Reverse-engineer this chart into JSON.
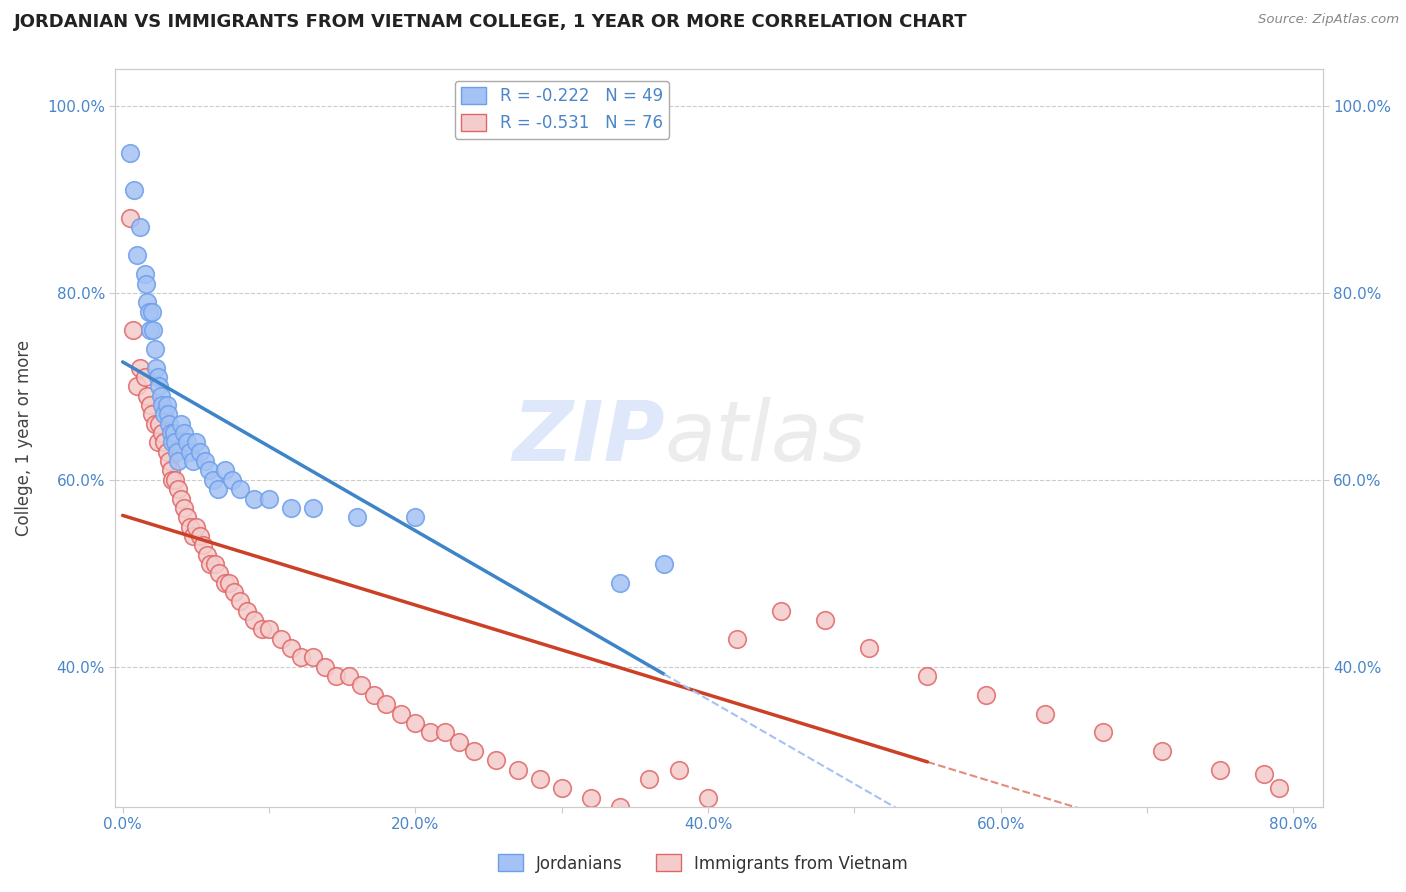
{
  "title": "JORDANIAN VS IMMIGRANTS FROM VIETNAM COLLEGE, 1 YEAR OR MORE CORRELATION CHART",
  "source": "Source: ZipAtlas.com",
  "ylabel": "College, 1 year or more",
  "xlim": [
    -0.005,
    0.82
  ],
  "ylim": [
    0.25,
    1.04
  ],
  "xticks": [
    0.0,
    0.1,
    0.2,
    0.3,
    0.4,
    0.5,
    0.6,
    0.7,
    0.8
  ],
  "xticklabels": [
    "0.0%",
    "",
    "20.0%",
    "",
    "40.0%",
    "",
    "60.0%",
    "",
    "80.0%"
  ],
  "yticks": [
    0.4,
    0.6,
    0.8,
    1.0
  ],
  "yticklabels": [
    "40.0%",
    "60.0%",
    "80.0%",
    "100.0%"
  ],
  "legend_r1": "R = -0.222",
  "legend_n1": "N = 49",
  "legend_r2": "R = -0.531",
  "legend_n2": "N = 76",
  "blue_fill": "#a4c2f4",
  "pink_fill": "#f4cccc",
  "blue_edge": "#6d9eeb",
  "pink_edge": "#e06666",
  "blue_line": "#3d85c8",
  "pink_line": "#cc4125",
  "dash_color": "#a4c2f4",
  "jordanians_x": [
    0.005,
    0.008,
    0.01,
    0.012,
    0.015,
    0.016,
    0.017,
    0.018,
    0.019,
    0.02,
    0.021,
    0.022,
    0.023,
    0.024,
    0.025,
    0.026,
    0.027,
    0.028,
    0.03,
    0.031,
    0.032,
    0.033,
    0.034,
    0.035,
    0.036,
    0.037,
    0.038,
    0.04,
    0.042,
    0.044,
    0.046,
    0.048,
    0.05,
    0.053,
    0.056,
    0.059,
    0.062,
    0.065,
    0.07,
    0.075,
    0.08,
    0.09,
    0.1,
    0.115,
    0.13,
    0.16,
    0.2,
    0.34,
    0.37
  ],
  "jordanians_y": [
    0.95,
    0.91,
    0.84,
    0.87,
    0.82,
    0.81,
    0.79,
    0.78,
    0.76,
    0.78,
    0.76,
    0.74,
    0.72,
    0.71,
    0.7,
    0.69,
    0.68,
    0.67,
    0.68,
    0.67,
    0.66,
    0.65,
    0.64,
    0.65,
    0.64,
    0.63,
    0.62,
    0.66,
    0.65,
    0.64,
    0.63,
    0.62,
    0.64,
    0.63,
    0.62,
    0.61,
    0.6,
    0.59,
    0.61,
    0.6,
    0.59,
    0.58,
    0.58,
    0.57,
    0.57,
    0.56,
    0.56,
    0.49,
    0.51
  ],
  "vietnam_x": [
    0.005,
    0.007,
    0.01,
    0.012,
    0.015,
    0.017,
    0.019,
    0.02,
    0.022,
    0.024,
    0.025,
    0.027,
    0.028,
    0.03,
    0.032,
    0.033,
    0.034,
    0.036,
    0.038,
    0.04,
    0.042,
    0.044,
    0.046,
    0.048,
    0.05,
    0.053,
    0.055,
    0.058,
    0.06,
    0.063,
    0.066,
    0.07,
    0.073,
    0.076,
    0.08,
    0.085,
    0.09,
    0.095,
    0.1,
    0.108,
    0.115,
    0.122,
    0.13,
    0.138,
    0.146,
    0.155,
    0.163,
    0.172,
    0.18,
    0.19,
    0.2,
    0.21,
    0.22,
    0.23,
    0.24,
    0.255,
    0.27,
    0.285,
    0.3,
    0.32,
    0.34,
    0.36,
    0.38,
    0.4,
    0.42,
    0.45,
    0.48,
    0.51,
    0.55,
    0.59,
    0.63,
    0.67,
    0.71,
    0.75,
    0.79,
    0.78
  ],
  "vietnam_y": [
    0.88,
    0.76,
    0.7,
    0.72,
    0.71,
    0.69,
    0.68,
    0.67,
    0.66,
    0.64,
    0.66,
    0.65,
    0.64,
    0.63,
    0.62,
    0.61,
    0.6,
    0.6,
    0.59,
    0.58,
    0.57,
    0.56,
    0.55,
    0.54,
    0.55,
    0.54,
    0.53,
    0.52,
    0.51,
    0.51,
    0.5,
    0.49,
    0.49,
    0.48,
    0.47,
    0.46,
    0.45,
    0.44,
    0.44,
    0.43,
    0.42,
    0.41,
    0.41,
    0.4,
    0.39,
    0.39,
    0.38,
    0.37,
    0.36,
    0.35,
    0.34,
    0.33,
    0.33,
    0.32,
    0.31,
    0.3,
    0.29,
    0.28,
    0.27,
    0.26,
    0.25,
    0.28,
    0.29,
    0.26,
    0.43,
    0.46,
    0.45,
    0.42,
    0.39,
    0.37,
    0.35,
    0.33,
    0.31,
    0.29,
    0.27,
    0.285
  ]
}
